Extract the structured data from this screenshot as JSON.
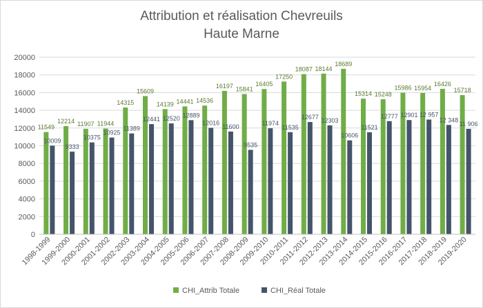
{
  "chart_data": {
    "type": "bar",
    "title": "Attribution et réalisation Chevreuils",
    "subtitle": "Haute Marne",
    "ylim": [
      0,
      20000
    ],
    "yticks": [
      0,
      2000,
      4000,
      6000,
      8000,
      10000,
      12000,
      14000,
      16000,
      18000,
      20000
    ],
    "grid": true,
    "legend": "bottom",
    "categories": [
      "1998-1999",
      "1999-2000",
      "2000-2001",
      "2001-2002",
      "2002-2003",
      "2003-2004",
      "2004-2005",
      "2005-2006",
      "2006-2007",
      "2007-2008",
      "2008-2009",
      "2009-2010",
      "2010-2011",
      "2011-2012",
      "2012-2013",
      "2013-2014",
      "2014-2015",
      "2015-2016",
      "2016-2017",
      "2017-2018",
      "2018-2019",
      "2019-2020"
    ],
    "series": [
      {
        "name": "CHI_Attrib Totale",
        "color": "#70ad47",
        "values": [
          11549,
          12214,
          11907,
          11944,
          14315,
          15609,
          14139,
          14441,
          14536,
          16197,
          15841,
          16405,
          17250,
          18087,
          18144,
          18689,
          15314,
          15248,
          15986,
          15954,
          16426,
          15718
        ],
        "labels": [
          "11549",
          "12214",
          "11907",
          "11944",
          "14315",
          "15609",
          "14139",
          "14441",
          "14536",
          "16197",
          "15841",
          "16405",
          "17250",
          "18087",
          "18144",
          "18689",
          "15314",
          "15248",
          "15986",
          "15954",
          "16426",
          "15718"
        ]
      },
      {
        "name": "CHI_Réal Totale",
        "color": "#44546a",
        "values": [
          10009,
          9333,
          10375,
          10925,
          11389,
          12441,
          12520,
          12889,
          12016,
          11600,
          9535,
          11974,
          11535,
          12677,
          12303,
          10606,
          11521,
          12777,
          12901,
          12957,
          12348,
          11906
        ],
        "labels": [
          "10009",
          "9333",
          "10375",
          "10925",
          "11389",
          "12441",
          "12520",
          "12889",
          "12016",
          "11600",
          "9535",
          "11974",
          "11535",
          "12677",
          "12303",
          "10606",
          "11521",
          "12777",
          "12901",
          "12 957",
          "12 348",
          "11 906"
        ]
      }
    ]
  }
}
